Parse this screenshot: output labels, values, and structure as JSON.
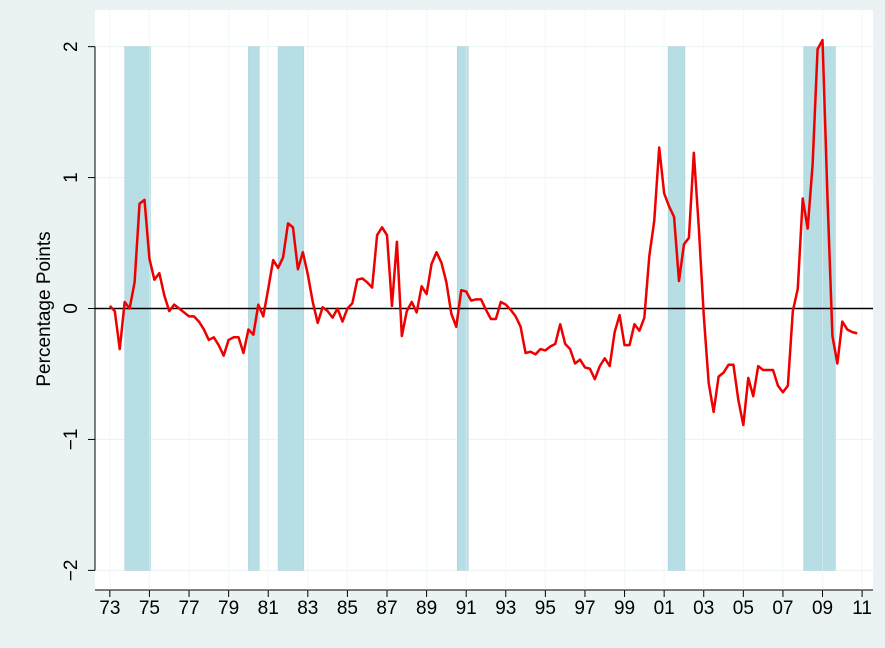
{
  "chart_data": {
    "type": "line",
    "ylabel": "Percentage Points",
    "xlim": [
      1972.25,
      2011.55
    ],
    "ylim": [
      -2.15,
      2.28
    ],
    "xticks": [
      {
        "value": 1973,
        "label": "73"
      },
      {
        "value": 1975,
        "label": "75"
      },
      {
        "value": 1977,
        "label": "77"
      },
      {
        "value": 1979,
        "label": "79"
      },
      {
        "value": 1981,
        "label": "81"
      },
      {
        "value": 1983,
        "label": "83"
      },
      {
        "value": 1985,
        "label": "85"
      },
      {
        "value": 1987,
        "label": "87"
      },
      {
        "value": 1989,
        "label": "89"
      },
      {
        "value": 1991,
        "label": "91"
      },
      {
        "value": 1993,
        "label": "93"
      },
      {
        "value": 1995,
        "label": "95"
      },
      {
        "value": 1997,
        "label": "97"
      },
      {
        "value": 1999,
        "label": "99"
      },
      {
        "value": 2001,
        "label": "01"
      },
      {
        "value": 2003,
        "label": "03"
      },
      {
        "value": 2005,
        "label": "05"
      },
      {
        "value": 2007,
        "label": "07"
      },
      {
        "value": 2009,
        "label": "09"
      },
      {
        "value": 2011,
        "label": "11"
      }
    ],
    "yticks": [
      {
        "value": -2,
        "label": "−2"
      },
      {
        "value": -1,
        "label": "−1"
      },
      0,
      1,
      2
    ],
    "grid": true,
    "zero_line": true,
    "recession_color": "#b7dde5",
    "recessions": [
      [
        1973.75,
        1975.05
      ],
      [
        1980.0,
        1980.55
      ],
      [
        1981.5,
        1982.8
      ],
      [
        1990.55,
        1991.1
      ],
      [
        2001.2,
        2002.05
      ],
      [
        2008.05,
        2009.65
      ]
    ],
    "x": [
      1973,
      1973.25,
      1973.5,
      1973.75,
      1974,
      1974.25,
      1974.5,
      1974.75,
      1975,
      1975.25,
      1975.5,
      1975.75,
      1976,
      1976.25,
      1976.5,
      1976.75,
      1977,
      1977.25,
      1977.5,
      1977.75,
      1978,
      1978.25,
      1978.5,
      1978.75,
      1979,
      1979.25,
      1979.5,
      1979.75,
      1980,
      1980.25,
      1980.5,
      1980.75,
      1981,
      1981.25,
      1981.5,
      1981.75,
      1982,
      1982.25,
      1982.5,
      1982.75,
      1983,
      1983.25,
      1983.5,
      1983.75,
      1984,
      1984.25,
      1984.5,
      1984.75,
      1985,
      1985.25,
      1985.5,
      1985.75,
      1986,
      1986.25,
      1986.5,
      1986.75,
      1987,
      1987.25,
      1987.5,
      1987.75,
      1988,
      1988.25,
      1988.5,
      1988.75,
      1989,
      1989.25,
      1989.5,
      1989.75,
      1990,
      1990.25,
      1990.5,
      1990.75,
      1991,
      1991.25,
      1991.5,
      1991.75,
      1992,
      1992.25,
      1992.5,
      1992.75,
      1993,
      1993.25,
      1993.5,
      1993.75,
      1994,
      1994.25,
      1994.5,
      1994.75,
      1995,
      1995.25,
      1995.5,
      1995.75,
      1996,
      1996.25,
      1996.5,
      1996.75,
      1997,
      1997.25,
      1997.5,
      1997.75,
      1998,
      1998.25,
      1998.5,
      1998.75,
      1999,
      1999.25,
      1999.5,
      1999.75,
      2000,
      2000.25,
      2000.5,
      2000.75,
      2001,
      2001.25,
      2001.5,
      2001.75,
      2002,
      2002.25,
      2002.5,
      2002.75,
      2003,
      2003.25,
      2003.5,
      2003.75,
      2004,
      2004.25,
      2004.5,
      2004.75,
      2005,
      2005.25,
      2005.5,
      2005.75,
      2006,
      2006.25,
      2006.5,
      2006.75,
      2007,
      2007.25,
      2007.5,
      2007.75,
      2008,
      2008.25,
      2008.5,
      2008.75,
      2009,
      2009.25,
      2009.5,
      2009.75,
      2010,
      2010.25,
      2010.5,
      2010.75
    ],
    "series": [
      {
        "color": "#ee0000",
        "values": [
          0.02,
          -0.02,
          -0.31,
          0.05,
          0.0,
          0.2,
          0.8,
          0.83,
          0.38,
          0.22,
          0.27,
          0.1,
          -0.02,
          0.03,
          0.0,
          -0.03,
          -0.06,
          -0.06,
          -0.1,
          -0.16,
          -0.24,
          -0.22,
          -0.28,
          -0.36,
          -0.24,
          -0.22,
          -0.22,
          -0.34,
          -0.16,
          -0.2,
          0.03,
          -0.06,
          0.15,
          0.37,
          0.31,
          0.39,
          0.65,
          0.62,
          0.3,
          0.43,
          0.26,
          0.05,
          -0.11,
          0.01,
          -0.02,
          -0.07,
          0.0,
          -0.1,
          0.0,
          0.04,
          0.22,
          0.23,
          0.2,
          0.16,
          0.56,
          0.62,
          0.56,
          0.02,
          0.51,
          -0.21,
          -0.02,
          0.05,
          -0.03,
          0.17,
          0.11,
          0.34,
          0.43,
          0.35,
          0.2,
          -0.04,
          -0.14,
          0.14,
          0.13,
          0.06,
          0.07,
          0.07,
          -0.01,
          -0.08,
          -0.08,
          0.05,
          0.03,
          -0.01,
          -0.06,
          -0.14,
          -0.34,
          -0.33,
          -0.35,
          -0.31,
          -0.32,
          -0.29,
          -0.27,
          -0.12,
          -0.27,
          -0.31,
          -0.42,
          -0.39,
          -0.45,
          -0.46,
          -0.54,
          -0.44,
          -0.38,
          -0.44,
          -0.18,
          -0.05,
          -0.28,
          -0.28,
          -0.12,
          -0.17,
          -0.07,
          0.4,
          0.67,
          1.23,
          0.88,
          0.78,
          0.7,
          0.21,
          0.49,
          0.54,
          1.19,
          0.62,
          -0.05,
          -0.57,
          -0.79,
          -0.52,
          -0.49,
          -0.43,
          -0.43,
          -0.7,
          -0.89,
          -0.53,
          -0.67,
          -0.44,
          -0.47,
          -0.47,
          -0.47,
          -0.59,
          -0.64,
          -0.59,
          -0.02,
          0.15,
          0.84,
          0.61,
          1.1,
          1.98,
          2.05,
          0.85,
          -0.21,
          -0.42,
          -0.1,
          -0.16,
          -0.18,
          -0.19
        ]
      }
    ]
  }
}
